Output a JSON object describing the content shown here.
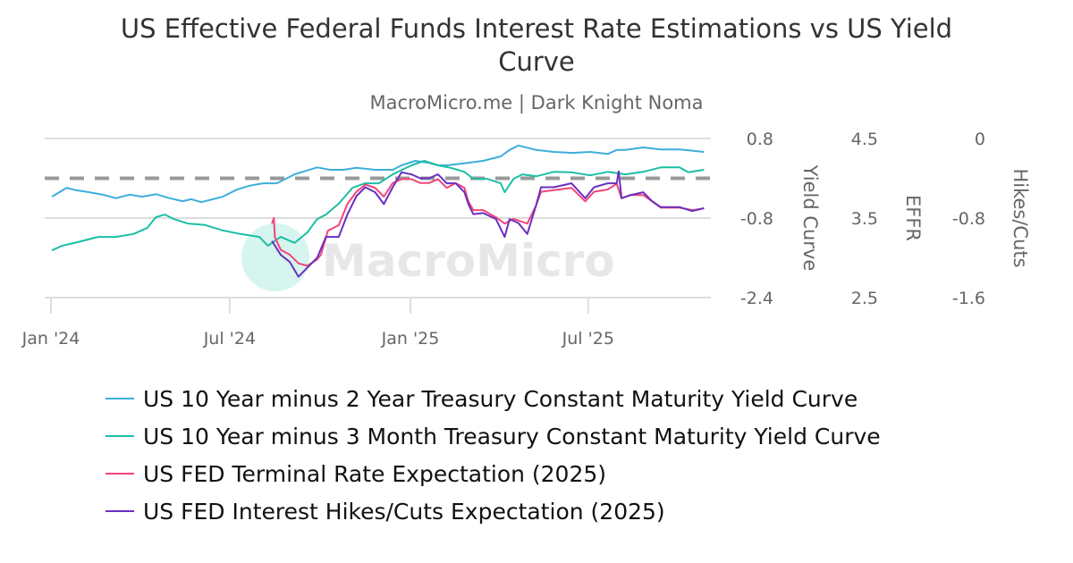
{
  "title": "US Effective Federal Funds Interest Rate Estimations vs US Yield Curve",
  "subtitle": "MacroMicro.me | Dark Knight Noma",
  "watermark": "MacroMicro",
  "chart_data": {
    "type": "line",
    "title": "US Effective Federal Funds Interest Rate Estimations vs US Yield Curve",
    "x_ticks": [
      "Jan '24",
      "Jul '24",
      "Jan '25",
      "Jul '25"
    ],
    "x_tick_dates": [
      "2024-01-01",
      "2024-07-01",
      "2025-01-01",
      "2025-07-01"
    ],
    "grid": true,
    "reference_line": {
      "axis": "Yield Curve",
      "value": 0,
      "style": "dashed",
      "color": "#999999"
    },
    "axes": [
      {
        "id": "yc",
        "label": "Yield Curve",
        "range": [
          -2.4,
          0.8
        ],
        "ticks": [
          "0.8",
          "-0.8",
          "-2.4"
        ]
      },
      {
        "id": "effr",
        "label": "EFFR",
        "range": [
          2.5,
          4.5
        ],
        "ticks": [
          "4.5",
          "3.5",
          "2.5"
        ]
      },
      {
        "id": "hc",
        "label": "Hikes/Cuts",
        "range": [
          -1.6,
          0
        ],
        "ticks": [
          "0",
          "-0.8",
          "-1.6"
        ]
      }
    ],
    "legend_position": "bottom",
    "series": [
      {
        "name": "US 10 Year minus 2 Year Treasury Constant Maturity Yield Curve",
        "axis": "yc",
        "color": "#3cafd9",
        "points": [
          [
            "2024-01-02",
            -0.37
          ],
          [
            "2024-01-17",
            -0.19
          ],
          [
            "2024-01-26",
            -0.24
          ],
          [
            "2024-02-09",
            -0.28
          ],
          [
            "2024-02-23",
            -0.33
          ],
          [
            "2024-03-07",
            -0.4
          ],
          [
            "2024-03-21",
            -0.33
          ],
          [
            "2024-04-03",
            -0.37
          ],
          [
            "2024-04-17",
            -0.32
          ],
          [
            "2024-05-01",
            -0.4
          ],
          [
            "2024-05-14",
            -0.46
          ],
          [
            "2024-05-23",
            -0.42
          ],
          [
            "2024-06-02",
            -0.48
          ],
          [
            "2024-06-24",
            -0.37
          ],
          [
            "2024-07-08",
            -0.23
          ],
          [
            "2024-07-21",
            -0.15
          ],
          [
            "2024-08-04",
            -0.1
          ],
          [
            "2024-08-18",
            -0.1
          ],
          [
            "2024-09-05",
            0.08
          ],
          [
            "2024-09-28",
            0.22
          ],
          [
            "2024-10-11",
            0.17
          ],
          [
            "2024-10-25",
            0.17
          ],
          [
            "2024-11-07",
            0.21
          ],
          [
            "2024-11-26",
            0.17
          ],
          [
            "2024-12-14",
            0.17
          ],
          [
            "2024-12-23",
            0.26
          ],
          [
            "2025-01-06",
            0.35
          ],
          [
            "2025-01-20",
            0.31
          ],
          [
            "2025-01-29",
            0.26
          ],
          [
            "2025-02-07",
            0.26
          ],
          [
            "2025-02-25",
            0.3
          ],
          [
            "2025-03-16",
            0.35
          ],
          [
            "2025-04-03",
            0.44
          ],
          [
            "2025-04-12",
            0.57
          ],
          [
            "2025-04-21",
            0.66
          ],
          [
            "2025-05-09",
            0.57
          ],
          [
            "2025-05-27",
            0.53
          ],
          [
            "2025-06-14",
            0.51
          ],
          [
            "2025-07-03",
            0.53
          ],
          [
            "2025-07-21",
            0.49
          ],
          [
            "2025-07-30",
            0.57
          ],
          [
            "2025-08-08",
            0.57
          ],
          [
            "2025-08-26",
            0.62
          ],
          [
            "2025-09-13",
            0.58
          ],
          [
            "2025-10-02",
            0.58
          ],
          [
            "2025-10-27",
            0.53
          ]
        ]
      },
      {
        "name": "US 10 Year minus 3 Month Treasury Constant Maturity Yield Curve",
        "axis": "yc",
        "color": "#1bbfa4",
        "points": [
          [
            "2024-01-02",
            -1.45
          ],
          [
            "2024-01-12",
            -1.36
          ],
          [
            "2024-01-31",
            -1.27
          ],
          [
            "2024-02-18",
            -1.18
          ],
          [
            "2024-03-07",
            -1.18
          ],
          [
            "2024-03-25",
            -1.12
          ],
          [
            "2024-04-08",
            -1.0
          ],
          [
            "2024-04-17",
            -0.78
          ],
          [
            "2024-04-26",
            -0.73
          ],
          [
            "2024-05-05",
            -0.82
          ],
          [
            "2024-05-19",
            -0.91
          ],
          [
            "2024-06-06",
            -0.94
          ],
          [
            "2024-06-24",
            -1.05
          ],
          [
            "2024-07-12",
            -1.12
          ],
          [
            "2024-07-31",
            -1.18
          ],
          [
            "2024-08-09",
            -1.36
          ],
          [
            "2024-08-22",
            -1.18
          ],
          [
            "2024-09-05",
            -1.3
          ],
          [
            "2024-09-18",
            -1.09
          ],
          [
            "2024-09-28",
            -0.82
          ],
          [
            "2024-10-07",
            -0.73
          ],
          [
            "2024-10-20",
            -0.51
          ],
          [
            "2024-11-03",
            -0.19
          ],
          [
            "2024-11-16",
            -0.1
          ],
          [
            "2024-11-30",
            -0.1
          ],
          [
            "2024-12-14",
            0.08
          ],
          [
            "2025-01-02",
            0.26
          ],
          [
            "2025-01-15",
            0.35
          ],
          [
            "2025-01-29",
            0.26
          ],
          [
            "2025-02-11",
            0.21
          ],
          [
            "2025-02-25",
            0.13
          ],
          [
            "2025-03-06",
            -0.01
          ],
          [
            "2025-03-20",
            -0.01
          ],
          [
            "2025-04-03",
            -0.1
          ],
          [
            "2025-04-07",
            -0.28
          ],
          [
            "2025-04-16",
            -0.01
          ],
          [
            "2025-04-25",
            0.08
          ],
          [
            "2025-05-09",
            0.04
          ],
          [
            "2025-05-27",
            0.13
          ],
          [
            "2025-06-14",
            0.12
          ],
          [
            "2025-07-03",
            0.06
          ],
          [
            "2025-07-21",
            0.13
          ],
          [
            "2025-08-08",
            0.08
          ],
          [
            "2025-08-26",
            0.13
          ],
          [
            "2025-09-13",
            0.22
          ],
          [
            "2025-10-02",
            0.22
          ],
          [
            "2025-10-11",
            0.12
          ],
          [
            "2025-10-27",
            0.17
          ]
        ]
      },
      {
        "name": "US FED Terminal Rate Expectation (2025)",
        "axis": "effr",
        "color": "#f0457a",
        "points": [
          [
            "2024-08-13",
            3.43
          ],
          [
            "2024-08-15",
            3.5
          ],
          [
            "2024-08-16",
            3.26
          ],
          [
            "2024-08-22",
            3.1
          ],
          [
            "2024-08-31",
            3.04
          ],
          [
            "2024-09-09",
            2.93
          ],
          [
            "2024-09-18",
            2.9
          ],
          [
            "2024-09-28",
            2.98
          ],
          [
            "2024-10-02",
            3.04
          ],
          [
            "2024-10-09",
            3.34
          ],
          [
            "2024-10-20",
            3.41
          ],
          [
            "2024-10-29",
            3.68
          ],
          [
            "2024-11-07",
            3.83
          ],
          [
            "2024-11-16",
            3.92
          ],
          [
            "2024-11-26",
            3.88
          ],
          [
            "2024-12-05",
            3.77
          ],
          [
            "2024-12-14",
            3.94
          ],
          [
            "2024-12-23",
            3.99
          ],
          [
            "2025-01-02",
            3.99
          ],
          [
            "2025-01-11",
            3.94
          ],
          [
            "2025-01-20",
            3.94
          ],
          [
            "2025-01-29",
            3.99
          ],
          [
            "2025-02-07",
            3.88
          ],
          [
            "2025-02-16",
            3.94
          ],
          [
            "2025-02-25",
            3.88
          ],
          [
            "2025-03-01",
            3.71
          ],
          [
            "2025-03-06",
            3.6
          ],
          [
            "2025-03-16",
            3.6
          ],
          [
            "2025-03-29",
            3.51
          ],
          [
            "2025-04-07",
            3.43
          ],
          [
            "2025-04-16",
            3.49
          ],
          [
            "2025-04-30",
            3.43
          ],
          [
            "2025-05-09",
            3.66
          ],
          [
            "2025-05-14",
            3.83
          ],
          [
            "2025-05-27",
            3.85
          ],
          [
            "2025-06-14",
            3.88
          ],
          [
            "2025-06-28",
            3.71
          ],
          [
            "2025-07-07",
            3.83
          ],
          [
            "2025-07-21",
            3.86
          ],
          [
            "2025-07-30",
            3.93
          ],
          [
            "2025-08-04",
            3.75
          ],
          [
            "2025-08-13",
            3.79
          ],
          [
            "2025-08-26",
            3.79
          ],
          [
            "2025-09-04",
            3.71
          ],
          [
            "2025-09-13",
            3.63
          ],
          [
            "2025-10-02",
            3.63
          ],
          [
            "2025-10-15",
            3.6
          ],
          [
            "2025-10-27",
            3.62
          ]
        ]
      },
      {
        "name": "US FED Interest Hikes/Cuts Expectation (2025)",
        "axis": "hc",
        "color": "#6a2fc0",
        "points": [
          [
            "2024-08-13",
            -1.03
          ],
          [
            "2024-08-22",
            -1.17
          ],
          [
            "2024-08-31",
            -1.24
          ],
          [
            "2024-09-09",
            -1.39
          ],
          [
            "2024-09-18",
            -1.3
          ],
          [
            "2024-09-28",
            -1.2
          ],
          [
            "2024-10-07",
            -0.99
          ],
          [
            "2024-10-20",
            -0.99
          ],
          [
            "2024-10-29",
            -0.76
          ],
          [
            "2024-11-07",
            -0.58
          ],
          [
            "2024-11-16",
            -0.49
          ],
          [
            "2024-11-26",
            -0.54
          ],
          [
            "2024-12-05",
            -0.66
          ],
          [
            "2024-12-14",
            -0.49
          ],
          [
            "2024-12-23",
            -0.34
          ],
          [
            "2025-01-02",
            -0.36
          ],
          [
            "2025-01-11",
            -0.4
          ],
          [
            "2025-01-20",
            -0.4
          ],
          [
            "2025-01-29",
            -0.36
          ],
          [
            "2025-02-07",
            -0.45
          ],
          [
            "2025-02-16",
            -0.45
          ],
          [
            "2025-02-25",
            -0.54
          ],
          [
            "2025-03-01",
            -0.66
          ],
          [
            "2025-03-06",
            -0.76
          ],
          [
            "2025-03-16",
            -0.75
          ],
          [
            "2025-03-29",
            -0.81
          ],
          [
            "2025-04-07",
            -0.99
          ],
          [
            "2025-04-12",
            -0.81
          ],
          [
            "2025-04-21",
            -0.85
          ],
          [
            "2025-04-30",
            -0.96
          ],
          [
            "2025-05-09",
            -0.67
          ],
          [
            "2025-05-14",
            -0.49
          ],
          [
            "2025-05-27",
            -0.49
          ],
          [
            "2025-06-14",
            -0.45
          ],
          [
            "2025-06-28",
            -0.6
          ],
          [
            "2025-07-07",
            -0.49
          ],
          [
            "2025-07-21",
            -0.45
          ],
          [
            "2025-07-30",
            -0.45
          ],
          [
            "2025-08-01",
            -0.33
          ],
          [
            "2025-08-04",
            -0.6
          ],
          [
            "2025-08-13",
            -0.57
          ],
          [
            "2025-08-26",
            -0.54
          ],
          [
            "2025-09-04",
            -0.63
          ],
          [
            "2025-09-13",
            -0.69
          ],
          [
            "2025-10-02",
            -0.69
          ],
          [
            "2025-10-15",
            -0.73
          ],
          [
            "2025-10-27",
            -0.7
          ]
        ]
      }
    ]
  }
}
